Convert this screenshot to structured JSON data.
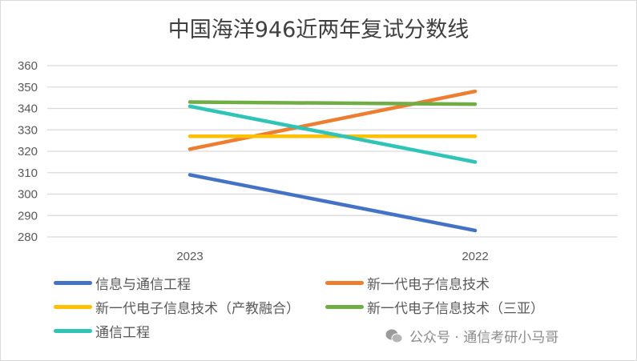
{
  "chart_data": {
    "type": "line",
    "title": "中国海洋946近两年复试分数线",
    "categories": [
      "2023",
      "2022"
    ],
    "ylim": [
      280,
      360
    ],
    "yticks": [
      280,
      290,
      300,
      310,
      320,
      330,
      340,
      350,
      360
    ],
    "grid": true,
    "legend_position": "bottom",
    "series": [
      {
        "name": "信息与通信工程",
        "color": "#4472C4",
        "values": [
          309,
          283
        ]
      },
      {
        "name": "新一代电子信息技术",
        "color": "#ED7D31",
        "values": [
          321,
          348
        ]
      },
      {
        "name": "新一代电子信息技术（产教融合）",
        "color": "#FFC000",
        "values": [
          327,
          327
        ]
      },
      {
        "name": "新一代电子信息技术（三亚）",
        "color": "#70AD47",
        "values": [
          343,
          342
        ]
      },
      {
        "name": "通信工程",
        "color": "#2EC4B6",
        "values": [
          341,
          315
        ]
      }
    ]
  },
  "watermark": {
    "icon": "wechat-icon",
    "text": "公众号 · 通信考研小马哥"
  }
}
